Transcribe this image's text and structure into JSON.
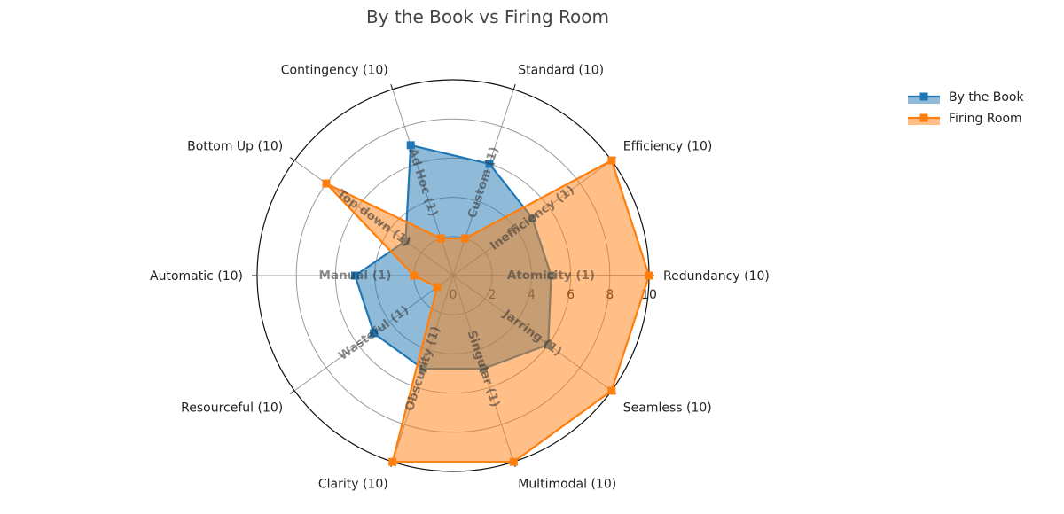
{
  "chart_data": {
    "type": "radar",
    "title": "By the Book vs Firing Room",
    "categories": [
      "Redundancy (10)",
      "Efficiency (10)",
      "Standard (10)",
      "Contingency (10)",
      "Bottom Up (10)",
      "Automatic (10)",
      "Resourceful (10)",
      "Clarity (10)",
      "Multimodal (10)",
      "Seamless (10)"
    ],
    "inner_labels": [
      "Atomicity (1)",
      "Inefficiency (1)",
      "Custom (1)",
      "Ad Hoc (1)",
      "Top down (1)",
      "Manual (1)",
      "Wasteful (1)",
      "Obscurity (1)",
      "Singular (1)",
      "Jarring (1)"
    ],
    "radial_ticks": [
      "0",
      "2",
      "4",
      "6",
      "8",
      "10"
    ],
    "radial_range": [
      0,
      10
    ],
    "series": [
      {
        "name": "By the Book",
        "color": "#1f77b4",
        "values": [
          5,
          5,
          6,
          7,
          3,
          5,
          5,
          5,
          5,
          6
        ]
      },
      {
        "name": "Firing Room",
        "color": "#ff7f0e",
        "values": [
          10,
          10,
          2,
          2,
          8,
          2,
          1,
          10,
          10,
          10
        ]
      }
    ],
    "legend_position": "top-right",
    "grid": true
  }
}
